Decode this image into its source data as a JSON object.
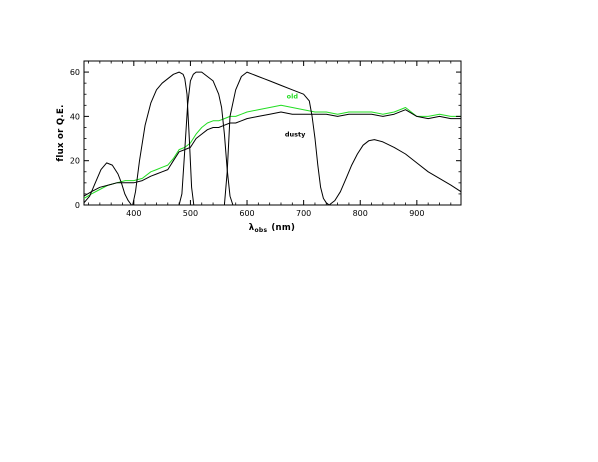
{
  "chart_data": {
    "type": "line",
    "xlabel": "λ",
    "xlabel_sub": "obs",
    "xlabel_units": "(nm)",
    "ylabel": "flux or Q.E.",
    "xlim": [
      312,
      978
    ],
    "ylim": [
      0,
      65
    ],
    "xticks": [
      400,
      500,
      600,
      700,
      800,
      900
    ],
    "yticks": [
      0,
      20,
      40,
      60
    ],
    "grid": false,
    "annotations": [
      {
        "text": "old",
        "color": "#22dd22",
        "x": 680,
        "y": 48
      },
      {
        "text": "dusty",
        "color": "#000000",
        "x": 685,
        "y": 31
      }
    ],
    "series": [
      {
        "name": "old",
        "color": "#22dd22",
        "x": [
          312,
          325,
          340,
          355,
          370,
          385,
          400,
          415,
          430,
          440,
          450,
          460,
          470,
          480,
          490,
          500,
          510,
          520,
          530,
          540,
          550,
          560,
          570,
          580,
          590,
          600,
          620,
          640,
          660,
          680,
          700,
          720,
          740,
          760,
          780,
          800,
          820,
          840,
          860,
          880,
          900,
          920,
          940,
          960,
          978
        ],
        "y": [
          3,
          5,
          7,
          9,
          10,
          11,
          11,
          12,
          15,
          16,
          17,
          18,
          21,
          25,
          26,
          28,
          32,
          35,
          37,
          38,
          38,
          39,
          40,
          40,
          41,
          42,
          43,
          44,
          45,
          44,
          43,
          42,
          42,
          41,
          42,
          42,
          42,
          41,
          42,
          44,
          40,
          40,
          41,
          40,
          40
        ]
      },
      {
        "name": "dusty",
        "color": "#000000",
        "x": [
          312,
          325,
          340,
          355,
          370,
          385,
          400,
          415,
          430,
          440,
          450,
          460,
          470,
          480,
          490,
          500,
          510,
          520,
          530,
          540,
          550,
          560,
          570,
          580,
          590,
          600,
          620,
          640,
          660,
          680,
          700,
          720,
          740,
          760,
          780,
          800,
          820,
          840,
          860,
          880,
          900,
          920,
          940,
          960,
          978
        ],
        "y": [
          4,
          6,
          8,
          9,
          10,
          10,
          10,
          11,
          13,
          14,
          15,
          16,
          20,
          24,
          25,
          26,
          30,
          32,
          34,
          35,
          35,
          36,
          37,
          37,
          38,
          39,
          40,
          41,
          42,
          41,
          41,
          41,
          41,
          40,
          41,
          41,
          41,
          40,
          41,
          43,
          40,
          39,
          40,
          39,
          39
        ]
      },
      {
        "name": "",
        "color": "#000000",
        "x": [
          312,
          322,
          332,
          342,
          352,
          362,
          372,
          378,
          384,
          390,
          396
        ],
        "y": [
          1,
          4,
          10,
          16,
          19,
          18,
          14,
          10,
          5,
          2,
          0
        ]
      },
      {
        "name": "",
        "color": "#000000",
        "x": [
          398,
          403,
          410,
          420,
          430,
          440,
          450,
          460,
          470,
          480,
          487,
          490,
          494,
          498,
          502,
          506
        ],
        "y": [
          0,
          6,
          20,
          36,
          46,
          52,
          55,
          57,
          59,
          60,
          59,
          57,
          50,
          30,
          8,
          0
        ]
      },
      {
        "name": "",
        "color": "#000000",
        "x": [
          480,
          485,
          490,
          495,
          500,
          505,
          510,
          520,
          530,
          540,
          550,
          555,
          560,
          565,
          570,
          575
        ],
        "y": [
          0,
          5,
          25,
          45,
          56,
          59,
          60,
          60,
          58,
          56,
          50,
          44,
          32,
          16,
          4,
          0
        ]
      },
      {
        "name": "",
        "color": "#000000",
        "x": [
          560,
          565,
          570,
          580,
          590,
          600,
          610,
          620,
          630,
          640,
          660,
          680,
          700,
          710,
          715,
          720,
          725,
          730,
          735,
          740,
          745
        ],
        "y": [
          0,
          15,
          40,
          52,
          58,
          60,
          59,
          58,
          57,
          56,
          54,
          52,
          50,
          47,
          40,
          30,
          18,
          8,
          3,
          1,
          0
        ]
      },
      {
        "name": "",
        "color": "#000000",
        "x": [
          745,
          755,
          765,
          775,
          785,
          795,
          805,
          815,
          825,
          840,
          860,
          880,
          900,
          920,
          940,
          960,
          978
        ],
        "y": [
          0,
          2,
          6,
          12,
          18,
          23,
          27,
          29,
          29.5,
          28.5,
          26,
          23,
          19,
          15,
          12,
          9,
          6
        ]
      }
    ]
  }
}
